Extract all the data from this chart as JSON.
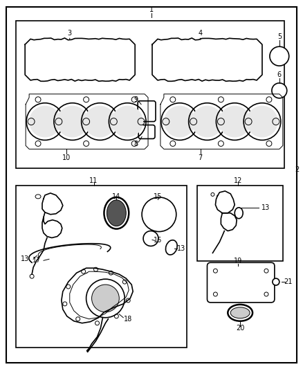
{
  "bg": "#ffffff",
  "line_color": "#000000",
  "figsize": [
    4.38,
    5.33
  ],
  "dpi": 100
}
